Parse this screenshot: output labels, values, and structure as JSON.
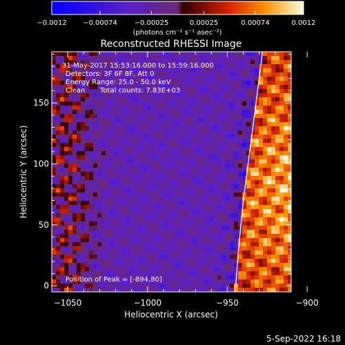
{
  "chart_data": {
    "type": "heatmap",
    "title": "Reconstructed RHESSI Image",
    "xlabel": "Heliocentric X (arcsec)",
    "ylabel": "Heliocentric Y (arcsec)",
    "xlim": [
      -1060,
      -910
    ],
    "ylim": [
      -5,
      192
    ],
    "x_ticks": [
      -1050,
      -1000,
      -950,
      -900
    ],
    "x_tick_labels": [
      "−1050",
      "−1000",
      "−950",
      "−900"
    ],
    "y_ticks": [
      0,
      50,
      100,
      150
    ],
    "y_tick_labels": [
      "0",
      "50",
      "100",
      "150"
    ],
    "colorbar": {
      "range": [
        -0.0012,
        0.0012
      ],
      "ticks": [
        -0.0012,
        -0.00074,
        -0.00025,
        0.00025,
        0.00074,
        0.0012
      ],
      "tick_labels": [
        "−0.0012",
        "−0.00074",
        "−0.00025",
        "0.00025",
        "0.00074",
        "0.0012"
      ],
      "unit_label": "(photons cm⁻² s⁻¹ asec⁻²)"
    },
    "limb_line": [
      [
        -945,
        -5
      ],
      [
        -943,
        30
      ],
      [
        -940,
        70
      ],
      [
        -936,
        110
      ],
      [
        -932,
        150
      ],
      [
        -928,
        192
      ]
    ],
    "info": {
      "time_range": "31-May-2017 15:53:16.000 to 15:59:16.000",
      "detectors": "Detectors: 3F 6F 8F, Att 0",
      "energy": "Energy Range: 25.0 - 50.0 keV",
      "method": "Clean",
      "counts": "Total counts: 7.83E+03"
    },
    "peak_label": "Position of Peak = [-894,80]",
    "peak": [
      -894,
      80
    ],
    "colors": {
      "frame": "#ffffff",
      "background": "#000000",
      "limb": "#ffffff"
    }
  },
  "footer": {
    "date": "5-Sep-2022 16:18"
  }
}
